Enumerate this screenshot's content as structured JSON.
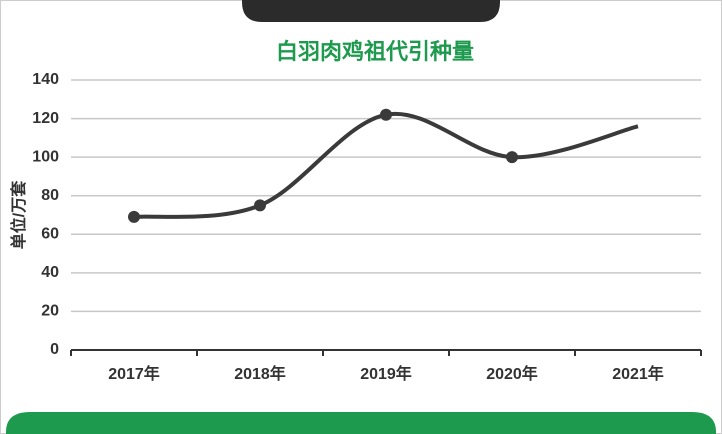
{
  "chart_data": {
    "type": "line",
    "title": "白羽肉鸡祖代引种量",
    "y_label": "单位/万套",
    "categories": [
      "2017年",
      "2018年",
      "2019年",
      "2020年",
      "2021年"
    ],
    "values": [
      69,
      75,
      122,
      100,
      116
    ],
    "color": "#3a3a3a",
    "ylim": [
      0,
      140
    ],
    "yticks": [
      0,
      20,
      40,
      60,
      80,
      100,
      120,
      140
    ],
    "grid": true
  }
}
